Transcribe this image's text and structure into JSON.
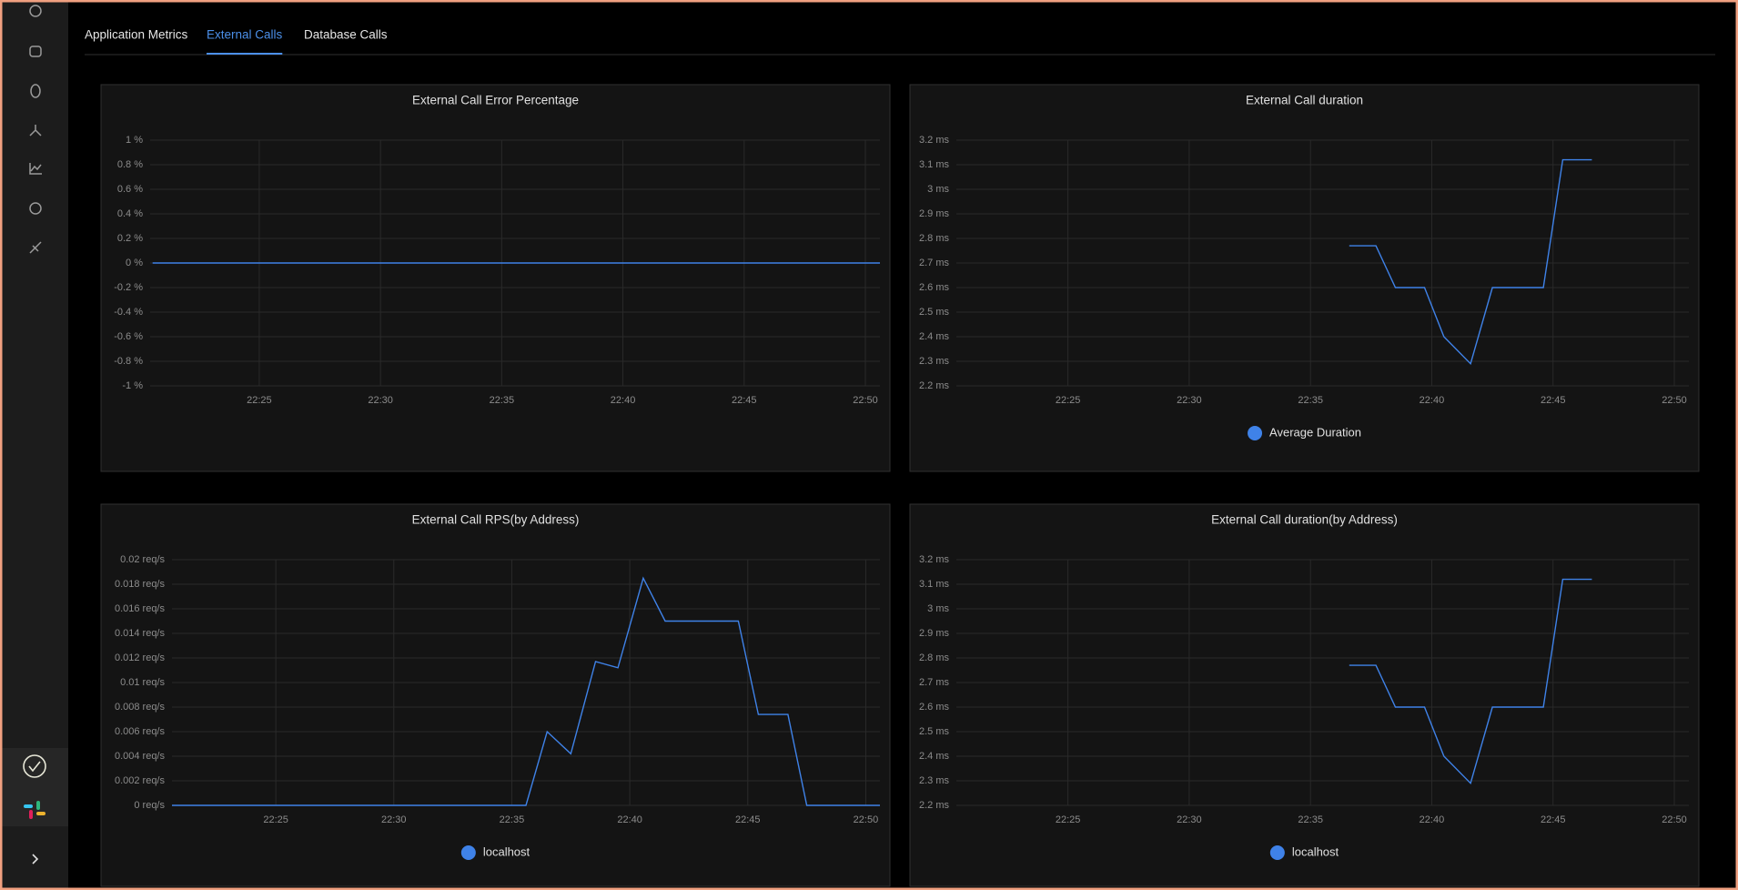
{
  "tabs": [
    "Application Metrics",
    "External Calls",
    "Database Calls"
  ],
  "active_tab": 1,
  "chart_data": [
    {
      "type": "line",
      "title": "External Call Error Percentage",
      "xlim": [
        1340.5,
        1370.6
      ],
      "xticks": [
        {
          "value": 1345,
          "label": "22:25"
        },
        {
          "value": 1350,
          "label": "22:30"
        },
        {
          "value": 1355,
          "label": "22:35"
        },
        {
          "value": 1360,
          "label": "22:40"
        },
        {
          "value": 1365,
          "label": "22:45"
        },
        {
          "value": 1370,
          "label": "22:50"
        }
      ],
      "ylim": [
        -1,
        1
      ],
      "yticks": [
        {
          "value": -1,
          "label": "-1 %"
        },
        {
          "value": -0.8,
          "label": "-0.8 %"
        },
        {
          "value": -0.6,
          "label": "-0.6 %"
        },
        {
          "value": -0.4,
          "label": "-0.4 %"
        },
        {
          "value": -0.2,
          "label": "-0.2 %"
        },
        {
          "value": 0,
          "label": "0 %"
        },
        {
          "value": 0.2,
          "label": "0.2 %"
        },
        {
          "value": 0.4,
          "label": "0.4 %"
        },
        {
          "value": 0.6,
          "label": "0.6 %"
        },
        {
          "value": 0.8,
          "label": "0.8 %"
        },
        {
          "value": 1,
          "label": "1 %"
        }
      ],
      "grid": true,
      "series": [
        {
          "color": "#3f82e8",
          "x": [
            1340.6,
            1345,
            1350,
            1355,
            1360,
            1365,
            1370.6
          ],
          "values": [
            0,
            0,
            0,
            0,
            0,
            0,
            0
          ]
        }
      ]
    },
    {
      "type": "line",
      "title": "External Call duration",
      "xlim": [
        1340.4,
        1370.6
      ],
      "xticks": [
        {
          "value": 1345,
          "label": "22:25"
        },
        {
          "value": 1350,
          "label": "22:30"
        },
        {
          "value": 1355,
          "label": "22:35"
        },
        {
          "value": 1360,
          "label": "22:40"
        },
        {
          "value": 1365,
          "label": "22:45"
        },
        {
          "value": 1370,
          "label": "22:50"
        }
      ],
      "ylim": [
        2.2,
        3.2
      ],
      "yticks": [
        {
          "value": 2.2,
          "label": "2.2 ms"
        },
        {
          "value": 2.3,
          "label": "2.3 ms"
        },
        {
          "value": 2.4,
          "label": "2.4 ms"
        },
        {
          "value": 2.5,
          "label": "2.5 ms"
        },
        {
          "value": 2.6,
          "label": "2.6 ms"
        },
        {
          "value": 2.7,
          "label": "2.7 ms"
        },
        {
          "value": 2.8,
          "label": "2.8 ms"
        },
        {
          "value": 2.9,
          "label": "2.9 ms"
        },
        {
          "value": 3,
          "label": "3 ms"
        },
        {
          "value": 3.1,
          "label": "3.1 ms"
        },
        {
          "value": 3.2,
          "label": "3.2 ms"
        }
      ],
      "grid": true,
      "legend": "bottom",
      "series": [
        {
          "name": "Average Duration",
          "color": "#3f82e8",
          "x": [
            1356.6,
            1357.7,
            1358.5,
            1359.7,
            1360.5,
            1361.6,
            1362.5,
            1364.6,
            1365.4,
            1366.6
          ],
          "values": [
            2.77,
            2.77,
            2.6,
            2.6,
            2.4,
            2.29,
            2.6,
            2.6,
            3.12,
            3.12
          ]
        }
      ]
    },
    {
      "type": "line",
      "title": "External Call RPS(by Address)",
      "xlim": [
        1340.6,
        1370.6
      ],
      "xticks": [
        {
          "value": 1345,
          "label": "22:25"
        },
        {
          "value": 1350,
          "label": "22:30"
        },
        {
          "value": 1355,
          "label": "22:35"
        },
        {
          "value": 1360,
          "label": "22:40"
        },
        {
          "value": 1365,
          "label": "22:45"
        },
        {
          "value": 1370,
          "label": "22:50"
        }
      ],
      "ylim": [
        0,
        0.02
      ],
      "yticks": [
        {
          "value": 0,
          "label": "0 req/s"
        },
        {
          "value": 0.002,
          "label": "0.002 req/s"
        },
        {
          "value": 0.004,
          "label": "0.004 req/s"
        },
        {
          "value": 0.006,
          "label": "0.006 req/s"
        },
        {
          "value": 0.008,
          "label": "0.008 req/s"
        },
        {
          "value": 0.01,
          "label": "0.01 req/s"
        },
        {
          "value": 0.012,
          "label": "0.012 req/s"
        },
        {
          "value": 0.014,
          "label": "0.014 req/s"
        },
        {
          "value": 0.016,
          "label": "0.016 req/s"
        },
        {
          "value": 0.018,
          "label": "0.018 req/s"
        },
        {
          "value": 0.02,
          "label": "0.02 req/s"
        }
      ],
      "grid": true,
      "legend": "bottom",
      "series": [
        {
          "name": "localhost",
          "color": "#3f82e8",
          "x": [
            1340.6,
            1355.6,
            1356.5,
            1357.5,
            1358.55,
            1359.5,
            1360.57,
            1361.5,
            1364.6,
            1365.45,
            1366.7,
            1367.5,
            1370.6
          ],
          "values": [
            0,
            0,
            0.006,
            0.0042,
            0.0117,
            0.0112,
            0.0185,
            0.015,
            0.015,
            0.0074,
            0.0074,
            0,
            0
          ]
        }
      ]
    },
    {
      "type": "line",
      "title": "External Call duration(by Address)",
      "xlim": [
        1340.4,
        1370.6
      ],
      "xticks": [
        {
          "value": 1345,
          "label": "22:25"
        },
        {
          "value": 1350,
          "label": "22:30"
        },
        {
          "value": 1355,
          "label": "22:35"
        },
        {
          "value": 1360,
          "label": "22:40"
        },
        {
          "value": 1365,
          "label": "22:45"
        },
        {
          "value": 1370,
          "label": "22:50"
        }
      ],
      "ylim": [
        2.2,
        3.2
      ],
      "yticks": [
        {
          "value": 2.2,
          "label": "2.2 ms"
        },
        {
          "value": 2.3,
          "label": "2.3 ms"
        },
        {
          "value": 2.4,
          "label": "2.4 ms"
        },
        {
          "value": 2.5,
          "label": "2.5 ms"
        },
        {
          "value": 2.6,
          "label": "2.6 ms"
        },
        {
          "value": 2.7,
          "label": "2.7 ms"
        },
        {
          "value": 2.8,
          "label": "2.8 ms"
        },
        {
          "value": 2.9,
          "label": "2.9 ms"
        },
        {
          "value": 3,
          "label": "3 ms"
        },
        {
          "value": 3.1,
          "label": "3.1 ms"
        },
        {
          "value": 3.2,
          "label": "3.2 ms"
        }
      ],
      "grid": true,
      "legend": "bottom",
      "series": [
        {
          "name": "localhost",
          "color": "#3f82e8",
          "x": [
            1356.6,
            1357.7,
            1358.5,
            1359.7,
            1360.5,
            1361.6,
            1362.5,
            1364.6,
            1365.4,
            1366.6
          ],
          "values": [
            2.77,
            2.77,
            2.6,
            2.6,
            2.4,
            2.29,
            2.6,
            2.6,
            3.12,
            3.12
          ]
        }
      ]
    }
  ]
}
